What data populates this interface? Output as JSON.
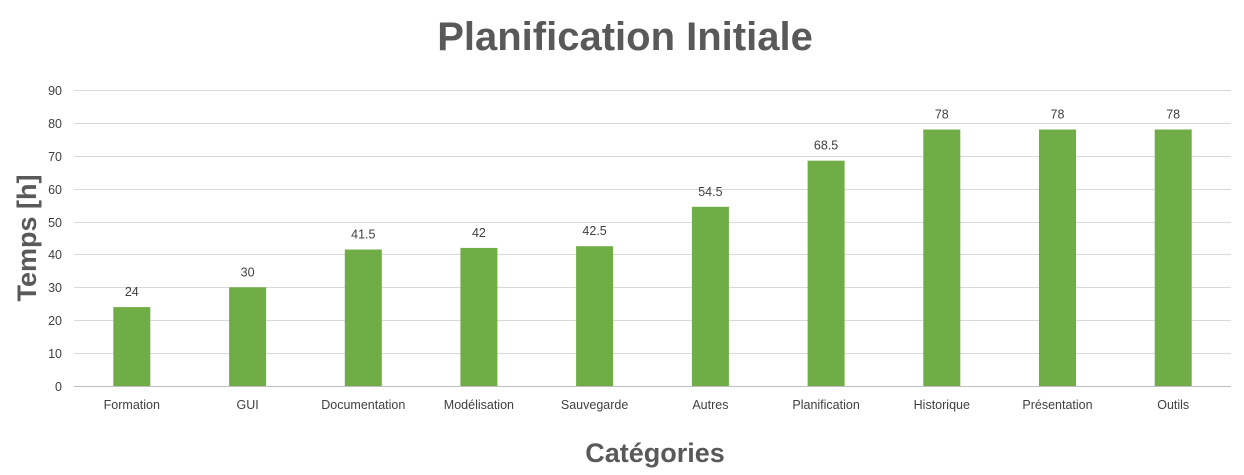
{
  "chart_data": {
    "type": "bar",
    "title": "Planification Initiale",
    "xlabel": "Catégories",
    "ylabel": "Temps [h]",
    "categories": [
      "Formation",
      "GUI",
      "Documentation",
      "Modélisation",
      "Sauvegarde",
      "Autres",
      "Planification",
      "Historique",
      "Présentation",
      "Outils"
    ],
    "values": [
      24,
      30,
      41.5,
      42,
      42.5,
      54.5,
      68.5,
      78,
      78,
      78
    ],
    "ylim": [
      0,
      90
    ],
    "yticks": [
      0,
      10,
      20,
      30,
      40,
      50,
      60,
      70,
      80,
      90
    ],
    "grid": true,
    "legend": "none",
    "bar_color": "#70AD47",
    "data_labels": true
  }
}
